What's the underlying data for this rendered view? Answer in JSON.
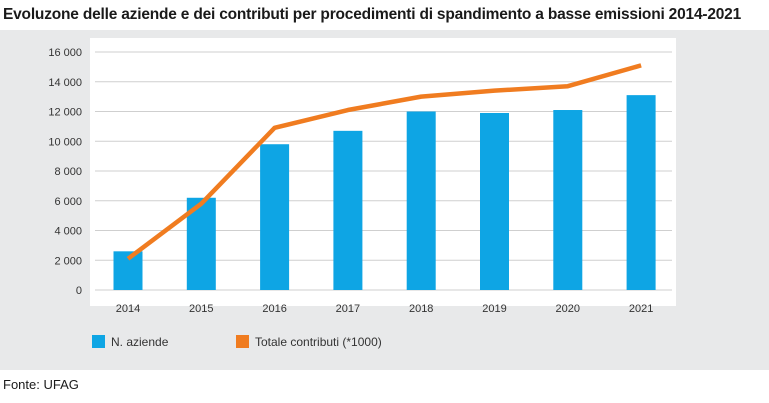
{
  "title": "Evoluzone delle aziende e dei contributi per procedimenti di spandimento a basse emissioni 2014-2021",
  "source": "Fonte: UFAG",
  "colors": {
    "bars": "#0ea5e4",
    "line": "#f07c20",
    "panel": "#e8e9ea",
    "plot": "#ffffff",
    "grid": "#cfcfcf",
    "axis_text": "#333333"
  },
  "chart_data": {
    "type": "bar",
    "title": "Evoluzone delle aziende e dei contributi per procedimenti di spandimento a basse emissioni 2014-2021",
    "xlabel": "",
    "ylabel": "",
    "ylim": [
      0,
      16000
    ],
    "grid": true,
    "y_ticks": [
      0,
      2000,
      4000,
      6000,
      8000,
      10000,
      12000,
      14000,
      16000
    ],
    "y_tick_labels": [
      "0",
      "2 000",
      "4 000",
      "6 000",
      "8 000",
      "10 000",
      "12 000",
      "14 000",
      "16 000"
    ],
    "categories": [
      "2014",
      "2015",
      "2016",
      "2017",
      "2018",
      "2019",
      "2020",
      "2021"
    ],
    "legend_position": "bottom-left",
    "series": [
      {
        "name": "N. aziende",
        "type": "bar",
        "values": [
          2600,
          6200,
          9800,
          10700,
          12000,
          11900,
          12100,
          13100
        ]
      },
      {
        "name": "Totale contributi (*1000)",
        "type": "line",
        "values": [
          2100,
          5800,
          10900,
          12100,
          13000,
          13400,
          13700,
          15100
        ]
      }
    ]
  }
}
